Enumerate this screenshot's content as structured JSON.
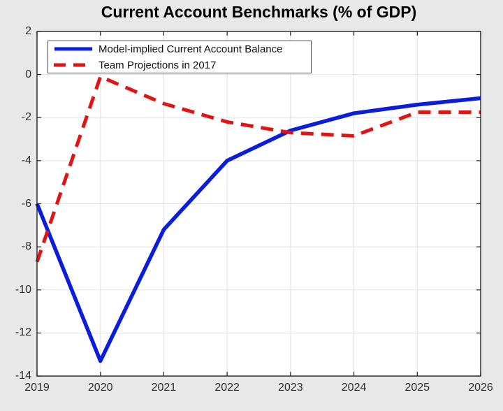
{
  "figure": {
    "background": "#e8e8e8",
    "plot_background": "#ffffff",
    "axis_color": "#222222",
    "grid_color": "#e2e2e2",
    "tick_label_color": "#2e2e2e"
  },
  "chart_data": {
    "type": "line",
    "title": "Current Account Benchmarks (% of GDP)",
    "xlabel": "",
    "ylabel": "",
    "x": [
      2019,
      2020,
      2021,
      2022,
      2023,
      2024,
      2025,
      2026
    ],
    "series": [
      {
        "name": "Model-implied Current Account Balance",
        "color": "#0a1ddb",
        "style": "solid",
        "line_width": 5.5,
        "values": [
          -6.0,
          -13.3,
          -7.2,
          -4.0,
          -2.6,
          -1.8,
          -1.4,
          -1.1
        ]
      },
      {
        "name": "Team Projections in 2017",
        "color": "#e01414",
        "style": "dashed",
        "line_width": 5,
        "values": [
          -8.7,
          -0.1,
          -1.35,
          -2.2,
          -2.7,
          -2.85,
          -1.75,
          -1.75
        ]
      }
    ],
    "xlim": [
      2019,
      2026
    ],
    "ylim": [
      -14,
      2
    ],
    "xticks": [
      2019,
      2020,
      2021,
      2022,
      2023,
      2024,
      2025,
      2026
    ],
    "xtick_labels": [
      "2019",
      "2020",
      "2021",
      "2022",
      "2023",
      "2024",
      "2025",
      "2026"
    ],
    "yticks": [
      2,
      0,
      -2,
      -4,
      -6,
      -8,
      -10,
      -12,
      -14
    ],
    "ytick_labels": [
      "2",
      "0",
      "-2",
      "-4",
      "-6",
      "-8",
      "-10",
      "-12",
      "-14"
    ],
    "grid": true,
    "legend_position": "top-left"
  }
}
